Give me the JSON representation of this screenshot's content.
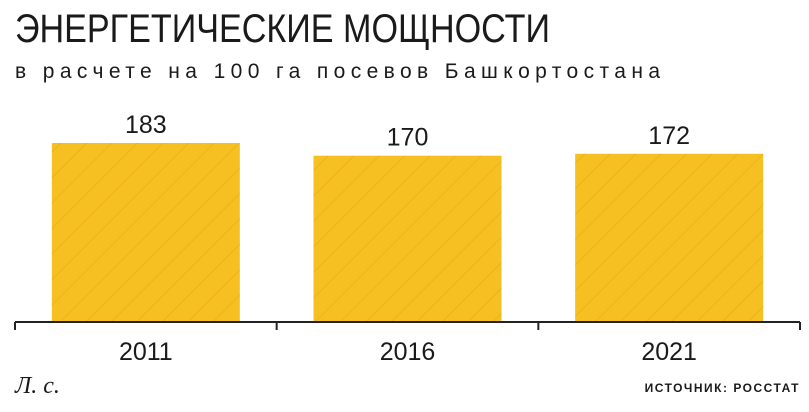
{
  "chart_data": {
    "type": "bar",
    "title": "ЭНЕРГЕТИЧЕСКИЕ МОЩНОСТИ",
    "subtitle": "в расчете на 100 га посевов Башкортостана",
    "categories": [
      "2011",
      "2016",
      "2021"
    ],
    "values": [
      183,
      170,
      172
    ],
    "color": "#f6bf22",
    "unit": "Л. с.",
    "source": "ИСТОЧНИК: РОССТАТ"
  }
}
